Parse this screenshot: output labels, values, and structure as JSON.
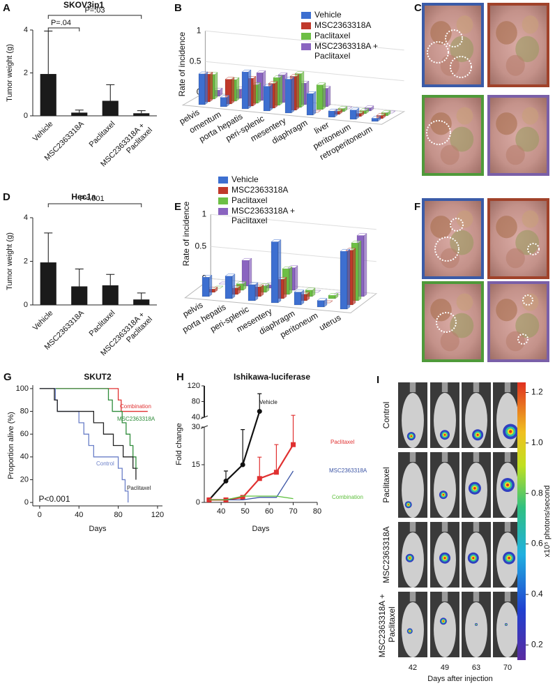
{
  "chart_data": [
    {
      "type": "bar",
      "panel": "A",
      "title": "SKOV3ip1",
      "ylabel": "Tumor weight (g)",
      "categories": [
        "Vehicle",
        "MSC2363318A",
        "Paclitaxel",
        "MSC2363318A + Paclitaxel"
      ],
      "values": [
        1.95,
        0.15,
        0.7,
        0.12
      ],
      "errors": [
        2.0,
        0.12,
        0.75,
        0.12
      ],
      "color": "#1a1a1a",
      "ylim": [
        0,
        4
      ],
      "yticks": [
        0,
        2,
        4
      ],
      "annotations": [
        {
          "text": "P=.04",
          "between": [
            "Vehicle",
            "MSC2363318A"
          ]
        },
        {
          "text": "P=.03",
          "between": [
            "Vehicle",
            "MSC2363318A + Paclitaxel"
          ]
        }
      ]
    },
    {
      "type": "bar3d",
      "panel": "B",
      "ylabel": "Rate of incidence",
      "categories": [
        "pelvis",
        "omentum",
        "porta hepatis",
        "peri-splenic",
        "mesentery",
        "diaphragm",
        "liver",
        "peritoneum",
        "retroperitoneum"
      ],
      "series": [
        {
          "name": "Vehicle",
          "color": "#3d6fd0",
          "values": [
            0.5,
            0.15,
            0.6,
            0.4,
            0.55,
            0.35,
            0.1,
            0.15,
            0.05
          ]
        },
        {
          "name": "MSC2363318A",
          "color": "#c0392b",
          "values": [
            0.45,
            0.4,
            0.45,
            0.4,
            0.55,
            0,
            0.05,
            0.05,
            0.05
          ]
        },
        {
          "name": "Paclitaxel",
          "color": "#6dbf45",
          "values": [
            0.4,
            0.35,
            0.3,
            0.45,
            0.55,
            0.4,
            0.05,
            0.05,
            0.05
          ]
        },
        {
          "name": "MSC2363318A + Paclitaxel",
          "color": "#8a64c0",
          "values": [
            0.1,
            0.15,
            0.45,
            0.45,
            0.35,
            0.3,
            0,
            0.05,
            0
          ]
        }
      ],
      "ylim": [
        0,
        1
      ],
      "yticks": [
        0,
        0.5,
        1
      ]
    },
    {
      "type": "photos",
      "panel": "C",
      "frame_colors": [
        "#3a5ba8",
        "#a0422a",
        "#4f9a3a",
        "#7a5fa8"
      ]
    },
    {
      "type": "bar",
      "panel": "D",
      "title": "Hec1a",
      "ylabel": "Tumor weight (g)",
      "categories": [
        "Vehicle",
        "MSC2363318A",
        "Paclitaxel",
        "MSC2363318A + Paclitaxel"
      ],
      "values": [
        1.95,
        0.85,
        0.9,
        0.25
      ],
      "errors": [
        1.35,
        0.8,
        0.5,
        0.3
      ],
      "color": "#1a1a1a",
      "ylim": [
        0,
        4
      ],
      "yticks": [
        0,
        2,
        4
      ],
      "annotations": [
        {
          "text": "P<.001",
          "between": [
            "Vehicle",
            "MSC2363318A + Paclitaxel"
          ]
        }
      ]
    },
    {
      "type": "bar3d",
      "panel": "E",
      "ylabel": "Rate of incidence",
      "categories": [
        "pelvis",
        "porta hepatis",
        "peri-splenic",
        "mesentery",
        "diaphragm",
        "peritoneum",
        "uterus"
      ],
      "series": [
        {
          "name": "Vehicle",
          "color": "#3d6fd0",
          "values": [
            0.3,
            0.35,
            0.25,
            0.95,
            0.2,
            0.1,
            0.9
          ]
        },
        {
          "name": "MSC2363318A",
          "color": "#c0392b",
          "values": [
            0.05,
            0.1,
            0.15,
            0.3,
            0.1,
            0,
            0.85
          ]
        },
        {
          "name": "Paclitaxel",
          "color": "#6dbf45",
          "values": [
            0,
            0.1,
            0.1,
            0.4,
            0.1,
            0.05,
            0.9
          ]
        },
        {
          "name": "MSC2363318A + Paclitaxel",
          "color": "#8a64c0",
          "values": [
            0,
            0.4,
            0.05,
            0.35,
            0,
            0,
            0.95
          ]
        }
      ],
      "ylim": [
        0,
        1
      ],
      "yticks": [
        0,
        0.5,
        1
      ]
    },
    {
      "type": "photos",
      "panel": "F",
      "frame_colors": [
        "#3a5ba8",
        "#a0422a",
        "#4f9a3a",
        "#7a5fa8"
      ]
    },
    {
      "type": "line",
      "panel": "G",
      "title": "SKUT2",
      "xlabel": "Days",
      "ylabel": "Proportion alive (%)",
      "xlim": [
        -7,
        125
      ],
      "xticks": [
        0,
        40,
        80,
        120
      ],
      "ylim": [
        -3,
        103
      ],
      "yticks": [
        0,
        20,
        40,
        60,
        80,
        100
      ],
      "series": [
        {
          "name": "Combination",
          "color": "#e03030",
          "x": [
            0,
            80,
            80,
            83,
            83,
            110
          ],
          "values": [
            100,
            100,
            90,
            90,
            80,
            80
          ]
        },
        {
          "name": "MSC2363318A",
          "color": "#2e8b3a",
          "x": [
            0,
            70,
            70,
            74,
            74,
            84,
            84,
            88,
            88,
            92,
            92,
            95,
            95,
            98,
            98,
            100
          ],
          "values": [
            100,
            100,
            90,
            90,
            80,
            80,
            70,
            70,
            60,
            60,
            50,
            50,
            40,
            40,
            30,
            30
          ]
        },
        {
          "name": "Control",
          "color": "#6a7fc8",
          "x": [
            0,
            16,
            16,
            18,
            18,
            40,
            40,
            45,
            45,
            50,
            50,
            55,
            55,
            80,
            80,
            84,
            84,
            87,
            87,
            90,
            90
          ],
          "values": [
            100,
            100,
            90,
            90,
            80,
            80,
            70,
            70,
            60,
            60,
            50,
            50,
            40,
            40,
            30,
            30,
            20,
            20,
            10,
            10,
            0
          ]
        },
        {
          "name": "Paclitaxel",
          "color": "#222222",
          "x": [
            0,
            15,
            15,
            18,
            18,
            55,
            55,
            65,
            65,
            75,
            75,
            85,
            85,
            95,
            95,
            98,
            98
          ],
          "values": [
            100,
            100,
            90,
            90,
            80,
            80,
            70,
            70,
            60,
            60,
            50,
            50,
            40,
            40,
            30,
            30,
            20
          ]
        }
      ],
      "annotations": [
        {
          "text": "P<0.001"
        }
      ]
    },
    {
      "type": "line",
      "panel": "H",
      "title": "Ishikawa-luciferase",
      "xlabel": "Days",
      "ylabel": "Fold change",
      "xlim": [
        33,
        80
      ],
      "xticks": [
        40,
        50,
        60,
        70,
        80
      ],
      "ylim": [
        0,
        30
      ],
      "yticks": [
        0,
        15,
        30
      ],
      "ylim_upper": [
        40,
        120
      ],
      "yticks_upper": [
        40,
        80,
        120
      ],
      "series": [
        {
          "name": "Vehicle",
          "color": "#111111",
          "marker": "circle",
          "x": [
            35,
            42,
            49,
            56
          ],
          "values": [
            1,
            8.5,
            15,
            55
          ],
          "errors": [
            null,
            4,
            14,
            45
          ]
        },
        {
          "name": "Paclitaxel",
          "color": "#e03030",
          "marker": "square",
          "x": [
            35,
            42,
            49,
            56,
            63,
            70
          ],
          "values": [
            1,
            1,
            2,
            9.5,
            12,
            23
          ],
          "errors": [
            null,
            null,
            null,
            8.5,
            11,
            22
          ]
        },
        {
          "name": "MSC2363318A",
          "color": "#3c55a5",
          "x": [
            35,
            42,
            49,
            56,
            63,
            70
          ],
          "values": [
            1,
            1,
            1,
            2,
            2,
            12.5
          ]
        },
        {
          "name": "Combination",
          "color": "#5cbf3a",
          "x": [
            35,
            42,
            49,
            56,
            63,
            70
          ],
          "values": [
            1,
            1,
            2.5,
            2.5,
            2.5,
            1.5
          ]
        }
      ]
    },
    {
      "type": "image",
      "panel": "I",
      "row_labels": [
        "Control",
        "Paclitaxel",
        "MSC2363318A",
        "MSC2363318A + Paclitaxel"
      ],
      "column_labels": [
        42,
        49,
        63,
        70
      ],
      "xlabel": "Days after injection",
      "colorbar": {
        "label": "x10⁵ photons/second",
        "lim": [
          0.14,
          1.24
        ],
        "ticks": [
          0.2,
          0.4,
          0.6,
          0.8,
          {
            "value": 1,
            "label": "1.0"
          },
          1.2
        ]
      }
    }
  ]
}
